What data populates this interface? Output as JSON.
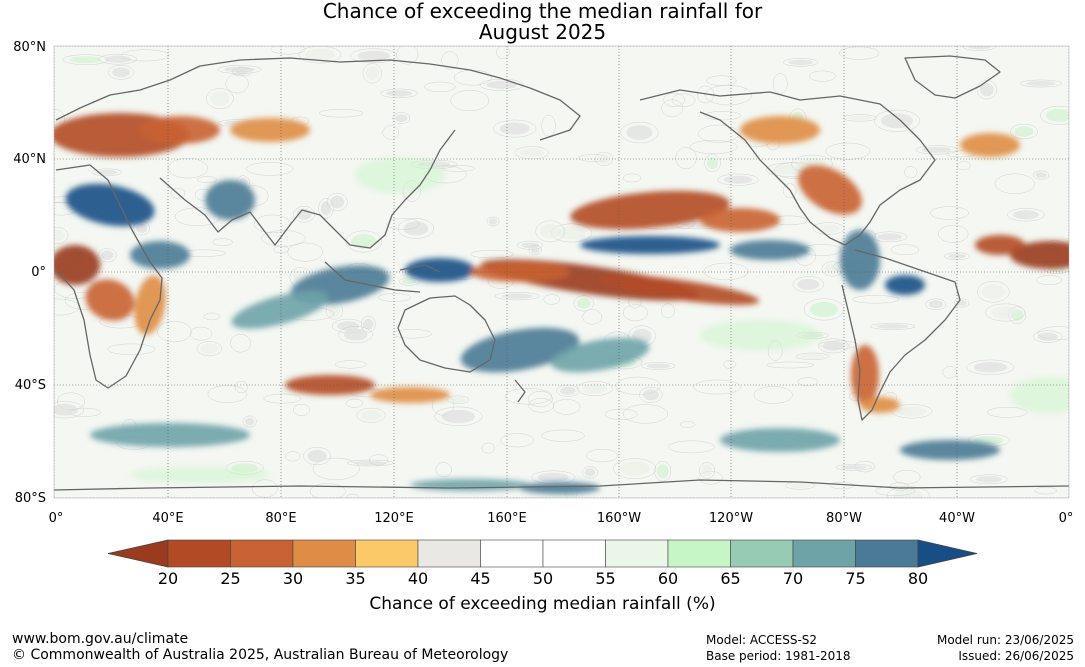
{
  "title_line1": "Chance of exceeding the median rainfall for",
  "title_line2": "August 2025",
  "lat_labels": [
    "80°N",
    "40°N",
    "0°",
    "40°S",
    "80°S"
  ],
  "lon_labels": [
    "0°",
    "40°E",
    "80°E",
    "120°E",
    "160°E",
    "160°W",
    "120°W",
    "80°W",
    "40°W",
    "0°"
  ],
  "colorbar": {
    "ticks": [
      "20",
      "25",
      "30",
      "35",
      "40",
      "45",
      "50",
      "55",
      "60",
      "65",
      "70",
      "75",
      "80"
    ],
    "colors": [
      "#9a3a1e",
      "#b34a26",
      "#c96232",
      "#df8d44",
      "#fbc968",
      "#e9e8e4",
      "#ffffff",
      "#ffffff",
      "#eaf6e7",
      "#c7f6c6",
      "#98cbb4",
      "#6ea3a8",
      "#4a7a95",
      "#154f86"
    ],
    "title": "Chance of exceeding median rainfall (%)"
  },
  "footer": {
    "website": "www.bom.gov.au/climate",
    "copyright": "© Commonwealth of Australia 2025, Australian Bureau of Meteorology",
    "model": "Model: ACCESS-S2",
    "base_period": "Base period: 1981-2018",
    "model_run": "Model run: 23/06/2025",
    "issued": "Issued: 26/06/2025"
  }
}
